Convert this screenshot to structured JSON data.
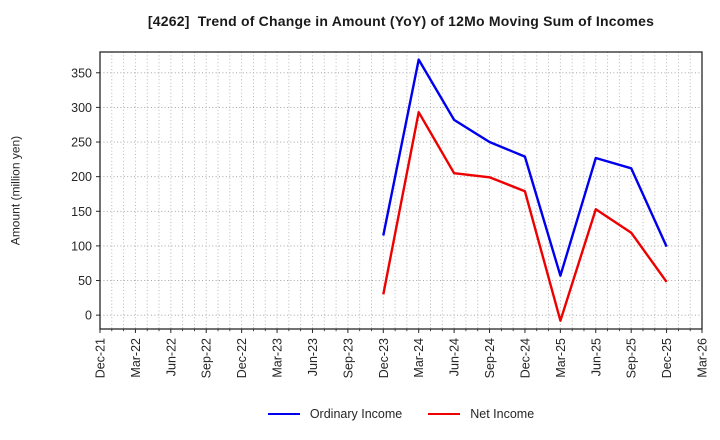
{
  "page": {
    "title": "[4262]  Trend of Change in Amount (YoY) of 12Mo Moving Sum of Incomes"
  },
  "chart_data": {
    "type": "line",
    "title": "[4262]  Trend of Change in Amount (YoY) of 12Mo Moving Sum of Incomes",
    "xlabel": "",
    "ylabel": "Amount (million yen)",
    "categories": [
      "Dec-21",
      "Mar-22",
      "Jun-22",
      "Sep-22",
      "Dec-22",
      "Mar-23",
      "Jun-23",
      "Sep-23",
      "Dec-23",
      "Mar-24",
      "Jun-24",
      "Sep-24",
      "Dec-24",
      "Mar-25",
      "Jun-25",
      "Sep-25",
      "Dec-25",
      "Mar-26"
    ],
    "yticks": [
      0,
      50,
      100,
      150,
      200,
      250,
      300,
      350
    ],
    "ylim": [
      -20,
      380
    ],
    "grid": "dotted gray; horizontal at yticks, vertical monthly",
    "legend_position": "bottom-center",
    "series": [
      {
        "name": "Ordinary Income",
        "color": "#0000ee",
        "start_category_index": 8,
        "values": [
          115,
          369,
          282,
          250,
          229,
          57,
          227,
          212,
          99
        ]
      },
      {
        "name": "Net Income",
        "color": "#ee0000",
        "start_category_index": 8,
        "values": [
          30,
          293,
          205,
          199,
          179,
          -8,
          153,
          119,
          48
        ]
      }
    ]
  }
}
